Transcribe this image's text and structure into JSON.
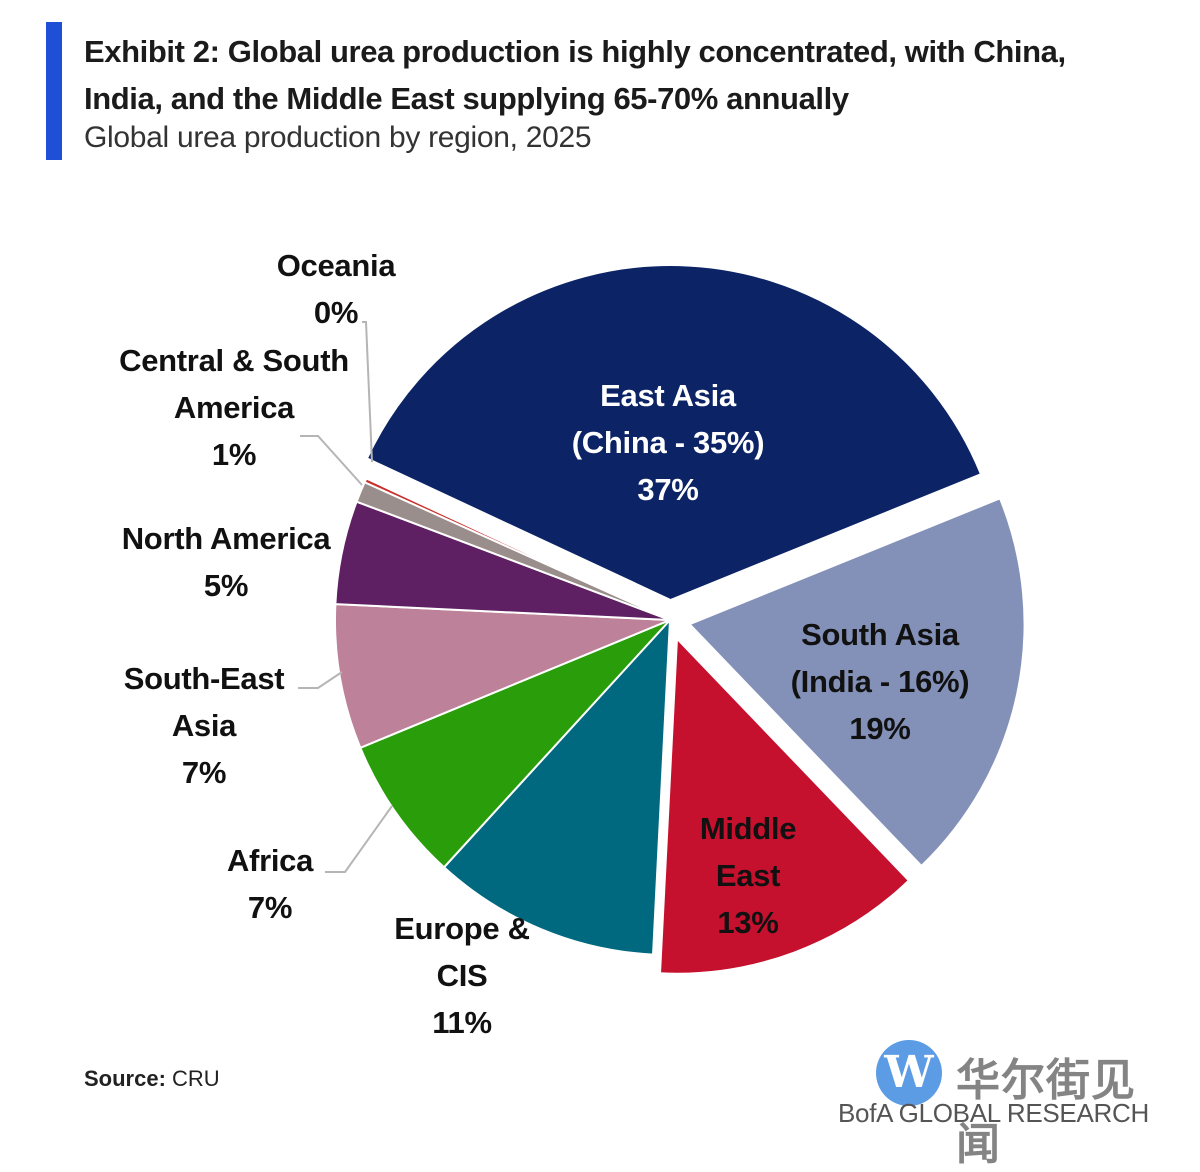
{
  "header": {
    "title": "Exhibit 2: Global urea production is highly concentrated, with China, India, and the Middle East supplying 65-70% annually",
    "subtitle": "Global urea production by region, 2025"
  },
  "chart_data": {
    "type": "pie",
    "title": "Exhibit 2: Global urea production is highly concentrated, with China, India, and the Middle East supplying 65-70% annually",
    "subtitle": "Global urea production by region, 2025",
    "slices": [
      {
        "name": "East Asia",
        "label_lines": [
          "East Asia",
          "(China - 35%)",
          "37%"
        ],
        "value": 37,
        "color": "#0c2366",
        "text_color": "#ffffff",
        "exploded": true
      },
      {
        "name": "South Asia",
        "label_lines": [
          "South Asia",
          "(India - 16%)",
          "19%"
        ],
        "value": 19,
        "color": "#8391b8",
        "text_color": "#111111",
        "exploded": true
      },
      {
        "name": "Middle East",
        "label_lines": [
          "Middle",
          "East",
          "13%"
        ],
        "value": 13,
        "color": "#c5102e",
        "text_color": "#111111",
        "exploded": true
      },
      {
        "name": "Europe & CIS",
        "label_lines": [
          "Europe &",
          "CIS",
          "11%"
        ],
        "value": 11,
        "color": "#006980",
        "text_color": "#111111",
        "exploded": false
      },
      {
        "name": "Africa",
        "label_lines": [
          "Africa",
          "7%"
        ],
        "value": 7,
        "color": "#2a9d0a",
        "text_color": "#111111",
        "exploded": false
      },
      {
        "name": "South-East Asia",
        "label_lines": [
          "South-East",
          "Asia",
          "7%"
        ],
        "value": 7,
        "color": "#bd8199",
        "text_color": "#111111",
        "exploded": false
      },
      {
        "name": "North America",
        "label_lines": [
          "North America",
          "5%"
        ],
        "value": 5,
        "color": "#5e2062",
        "text_color": "#111111",
        "exploded": false
      },
      {
        "name": "Central & South America",
        "label_lines": [
          "Central & South",
          "America",
          "1%"
        ],
        "value": 1,
        "color": "#9a8e8c",
        "text_color": "#111111",
        "exploded": false
      },
      {
        "name": "Oceania",
        "label_lines": [
          "Oceania",
          "0%"
        ],
        "value": 0.2,
        "color": "#c9302c",
        "text_color": "#111111",
        "exploded": false
      }
    ]
  },
  "footer": {
    "source_label": "Source:",
    "source_value": " CRU",
    "brand": "BofA GLOBAL RESEARCH"
  },
  "watermark": {
    "logo_letter": "W",
    "text": "华尔街见闻"
  }
}
